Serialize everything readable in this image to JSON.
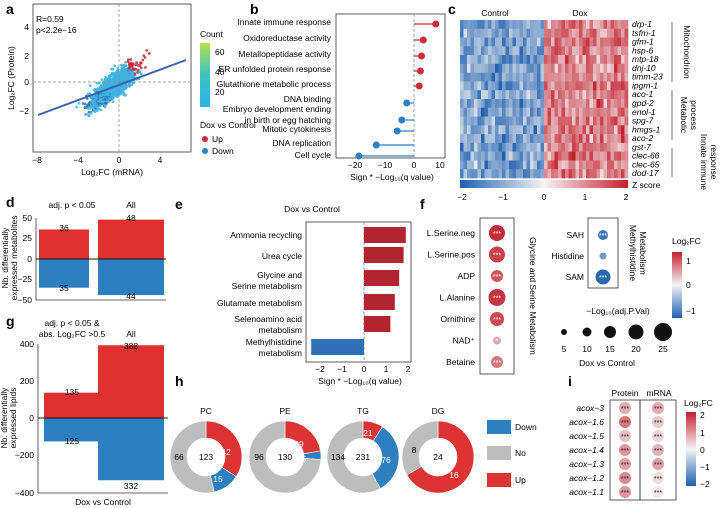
{
  "panels": {
    "a": "a",
    "b": "b",
    "c": "c",
    "d": "d",
    "e": "e",
    "f": "f",
    "g": "g",
    "h": "h",
    "i": "i"
  },
  "panel_a": {
    "stats": {
      "r": "R=0.59",
      "p": "p<2.2e−16"
    },
    "xlabel": "Log₂FC (mRNA)",
    "ylabel": "Log₂FC (Protein)",
    "xticks": [
      "−8",
      "−4",
      "0",
      "4"
    ],
    "yticks": [
      "4",
      "2",
      "0",
      "−2"
    ],
    "count_title": "Count",
    "count_ticks": [
      "60",
      "40",
      "20"
    ],
    "legend_title": "Dox vs Control",
    "legend_up": "Up",
    "legend_down": "Down",
    "colors": {
      "up": "#c8283a",
      "down": "#2e7fbf",
      "line": "#3b5fb0"
    }
  },
  "chart_data": [
    {
      "type": "scatter",
      "id": "a",
      "r": 0.59,
      "p": "<2.2e-16",
      "xlim": [
        -9,
        7
      ],
      "ylim": [
        -4,
        6
      ],
      "fit": {
        "slope": 0.55,
        "intercept": 0.05
      },
      "xlabel": "Log2FC (mRNA)",
      "ylabel": "Log2FC (Protein)"
    },
    {
      "type": "bar",
      "id": "b",
      "orientation": "horizontal",
      "xlabel": "Sign * -Log10(q value)",
      "xlim": [
        -22,
        10
      ],
      "categories": [
        "Innate immune response",
        "Oxidoreductase activity",
        "Metallopeptidase activity",
        "ER unfolded protein response",
        "Glutathione metabolic process",
        "DNA binding",
        "Embryo development ending in birth or egg hatching",
        "Mitotic cytokinesis",
        "DNA replication",
        "Cell cycle"
      ],
      "values": [
        7.5,
        3.2,
        2.6,
        2.2,
        1.8,
        -2.5,
        -4.2,
        -5.8,
        -13,
        -19
      ]
    },
    {
      "type": "heatmap",
      "id": "c",
      "columns_groups": [
        "Control",
        "Dox"
      ],
      "rows": [
        "drp-1",
        "tsfm-1",
        "gfm-1",
        "hsp-6",
        "mtp-18",
        "dnj-10",
        "timm-23",
        "ipgm-1",
        "aco-1",
        "gpd-2",
        "enol-1",
        "spg-7",
        "hmgs-1",
        "aco-2",
        "gst-7",
        "clec-66",
        "clec-65",
        "dod-17"
      ],
      "colorbar": {
        "min": -2,
        "max": 2,
        "label": "Z score"
      }
    },
    {
      "type": "bar",
      "id": "d",
      "groups": [
        "adj. p < 0.05",
        "All"
      ],
      "up": [
        36,
        48
      ],
      "down": [
        -35,
        -44
      ],
      "ylim": [
        -50,
        50
      ],
      "ylabel": "Nb. differentially expressed metabolites"
    },
    {
      "type": "bar",
      "id": "e",
      "orientation": "horizontal",
      "title": "Dox vs Control",
      "xlabel": "Sign * -Log10(q value)",
      "xlim": [
        -2.5,
        2.2
      ],
      "categories": [
        "Ammonia recycling",
        "Urea cycle",
        "Glycine and Serine metabolism",
        "Glutamate metabolism",
        "Selenoamino acid metabolism",
        "Methylhistidine metabolism"
      ],
      "values": [
        1.9,
        1.8,
        1.6,
        1.4,
        1.2,
        -2.4
      ]
    },
    {
      "type": "scatter",
      "id": "f",
      "groups": [
        "Glycine and Serine Metabolism",
        "Methylhistidine Metabolism"
      ],
      "items": [
        "L.Serine.neg",
        "L.Serine.pos",
        "ADP",
        "L.Alanine",
        "Ornithine",
        "NAD+",
        "Betaine",
        "SAH",
        "Histidine",
        "SAM"
      ],
      "size_legend": [
        5,
        10,
        15,
        20,
        25
      ],
      "colorbar": {
        "min": -1,
        "max": 1
      }
    },
    {
      "type": "bar",
      "id": "g",
      "groups": [
        "adj. p < 0.05 & abs. Log2FC >0.5",
        "All"
      ],
      "up": [
        135,
        388
      ],
      "down": [
        -125,
        -332
      ],
      "ylim": [
        -400,
        400
      ],
      "ylabel": "Nb. differentially expressed lipids"
    },
    {
      "type": "pie",
      "id": "h",
      "legend": [
        "Down",
        "No",
        "Up"
      ],
      "donuts": [
        {
          "label": "PC",
          "total": 123,
          "down": 15,
          "no": 66,
          "up": 42
        },
        {
          "label": "PE",
          "total": 130,
          "down": 5,
          "no": 96,
          "up": 29
        },
        {
          "label": "TG",
          "total": 231,
          "down": 76,
          "no": 134,
          "up": 21
        },
        {
          "label": "DG",
          "total": 24,
          "down": 0,
          "no": 8,
          "up": 16
        }
      ]
    },
    {
      "type": "heatmap",
      "id": "i",
      "columns": [
        "Protein",
        "mRNA"
      ],
      "rows": [
        "acox-3",
        "acox-1.6",
        "acox-1.5",
        "acox-1.4",
        "acox-1.3",
        "acox-1.2",
        "acox-1.1"
      ],
      "colorbar": {
        "min": -2,
        "max": 2,
        "label": "Log2FC"
      }
    }
  ],
  "panel_b": {
    "xlabel": "Sign * −Log₁₀(q value)",
    "xticks": [
      "−20",
      "−10",
      "0",
      "10"
    ],
    "labels": [
      "Innate immune response",
      "Oxidoreductase activity",
      "Metallopeptidase activity",
      "ER unfolded protein response",
      "Glutathione metabolic process",
      "DNA binding",
      "Embryo development ending",
      "in birth or egg hatching",
      "Mitotic cytokinesis",
      "DNA replication",
      "Cell cycle"
    ]
  },
  "panel_c": {
    "control": "Control",
    "dox": "Dox",
    "genes": [
      "drp-1",
      "tsfm-1",
      "gfm-1",
      "hsp-6",
      "mtp-18",
      "dnj-10",
      "timm-23",
      "ipgm-1",
      "aco-1",
      "gpd-2",
      "enol-1",
      "spg-7",
      "hmgs-1",
      "aco-2",
      "gst-7",
      "clec-66",
      "clec-65",
      "dod-17"
    ],
    "group1": "Mitochondrion",
    "group2a": "Metabolic",
    "group2b": "process",
    "group3a": "Innate immune",
    "group3b": "response",
    "cb_ticks": [
      "−2",
      "−1",
      "0",
      "1",
      "2"
    ],
    "cb_label": "Z score"
  },
  "panel_d": {
    "sig": "adj. p < 0.05",
    "all": "All",
    "ylabel1": "Nb. differentially",
    "ylabel2": "expressed metabolites",
    "yticks": [
      "50",
      "25",
      "0",
      "−25",
      "−50"
    ],
    "up_sig": "36",
    "up_all": "48",
    "down_sig": "35",
    "down_all": "44"
  },
  "panel_e": {
    "title": "Dox vs Control",
    "xlabel": "Sign * −Log₁₀(q value)",
    "xticks": [
      "−2",
      "−1",
      "0",
      "1",
      "2"
    ],
    "labels": [
      "Ammonia recycling",
      "Urea cycle",
      "Glycine and",
      "Serine metabolism",
      "Glutamate metabolism",
      "Selenoamino acid",
      "metabolism",
      "Methylhistidine",
      "metabolism"
    ]
  },
  "panel_f": {
    "items": [
      "L.Serine.neg",
      "L.Serine.pos",
      "ADP",
      "L.Alanine",
      "Ornithine",
      "NAD⁺",
      "Betaine"
    ],
    "items2": [
      "SAH",
      "Histidine",
      "SAM"
    ],
    "group1": "Glycine and Serine Metabolism",
    "group2a": "Methylhistidine",
    "group2b": "Metabolism",
    "cb_title": "Log₂FC",
    "cb_ticks": [
      "1",
      "0",
      "−1"
    ],
    "size_title": "−Log₁₀(adj.P.Val)",
    "size_ticks": [
      "5",
      "10",
      "15",
      "20",
      "25"
    ],
    "footer": "Dox vs Control",
    "stars": "***",
    "star1": "*"
  },
  "panel_g": {
    "sig1": "adj. p < 0.05 &",
    "sig2": "abs. Log₂FC >0.5",
    "all": "All",
    "ylabel1": "Nb. differentially",
    "ylabel2": "expressed lipids",
    "yticks": [
      "400",
      "200",
      "0",
      "−200",
      "−400"
    ],
    "up_sig": "135",
    "up_all": "388",
    "down_sig": "125",
    "down_all": "332",
    "footer": "Dox vs Control"
  },
  "panel_h": {
    "pc": "PC",
    "pe": "PE",
    "tg": "TG",
    "dg": "DG",
    "pc_total": "123",
    "pc_no": "66",
    "pc_up": "42",
    "pc_down": "15",
    "pe_total": "130",
    "pe_no": "96",
    "pe_up": "29",
    "pe_down": "5",
    "tg_total": "231",
    "tg_no": "134",
    "tg_up": "21",
    "tg_down": "76",
    "dg_total": "24",
    "dg_no": "8",
    "dg_up": "16",
    "legend_down": "Down",
    "legend_no": "No",
    "legend_up": "Up"
  },
  "panel_i": {
    "protein": "Protein",
    "mrna": "mRNA",
    "genes": [
      "acox−3",
      "acox−1.6",
      "acox−1.5",
      "acox−1.4",
      "acox−1.3",
      "acox−1.2",
      "acox−1.1"
    ],
    "stars": "***",
    "cb_title": "Log₂FC",
    "cb_ticks": [
      "2",
      "1",
      "0",
      "−1",
      "−2"
    ]
  }
}
